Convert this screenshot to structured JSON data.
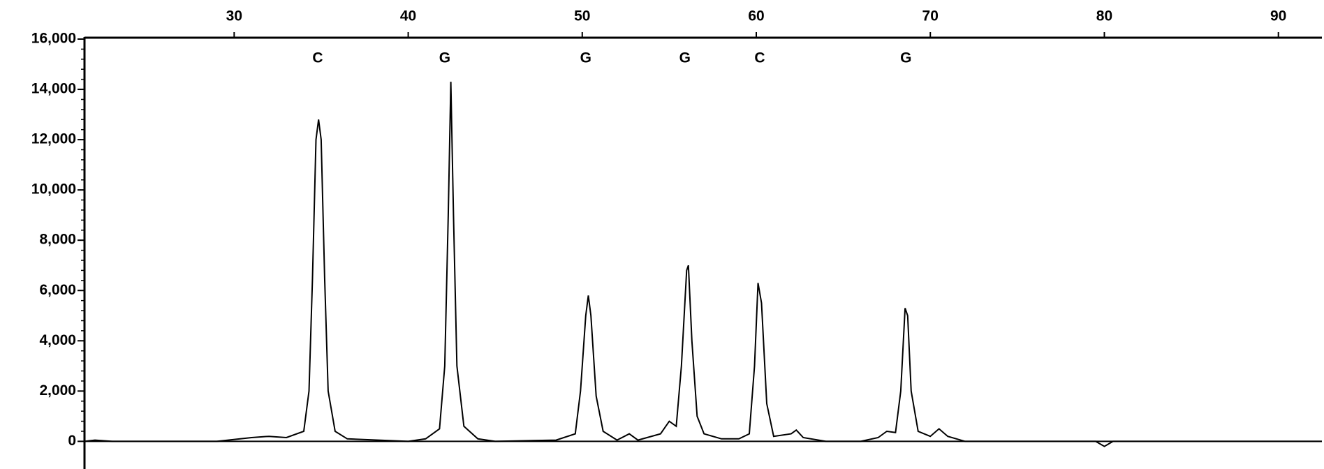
{
  "chart_data": {
    "type": "line",
    "xlim": [
      21.4,
      92.5
    ],
    "xticks": [
      30,
      40,
      50,
      60,
      70,
      80,
      90
    ],
    "ylim": [
      -1100,
      16000
    ],
    "yticks": [
      {
        "value": 0,
        "label": "0"
      },
      {
        "value": 2000,
        "label": "2,000"
      },
      {
        "value": 4000,
        "label": "4,000"
      },
      {
        "value": 6000,
        "label": "6,000"
      },
      {
        "value": 8000,
        "label": "8,000"
      },
      {
        "value": 10000,
        "label": "10,000"
      },
      {
        "value": 12000,
        "label": "12,000"
      },
      {
        "value": 14000,
        "label": "14,000"
      },
      {
        "value": 16000,
        "label": "16,000"
      }
    ],
    "base_calls": {
      "x": [
        34.8,
        42.1,
        50.2,
        55.9,
        60.2,
        68.6
      ],
      "labels": [
        "C",
        "G",
        "G",
        "G",
        "C",
        "G"
      ]
    },
    "series": [
      {
        "color": "#000000",
        "x": [
          21.4,
          22,
          23,
          29,
          31,
          32,
          33,
          34,
          34.3,
          34.5,
          34.7,
          34.85,
          35,
          35.2,
          35.4,
          35.8,
          36.5,
          40,
          41,
          41.8,
          42.1,
          42.3,
          42.45,
          42.6,
          42.8,
          43.2,
          44,
          45,
          48.5,
          49.6,
          49.9,
          50.2,
          50.35,
          50.5,
          50.8,
          51.2,
          52,
          52.7,
          53.2,
          54.5,
          55,
          55.4,
          55.7,
          56,
          56.1,
          56.3,
          56.6,
          57,
          58,
          59,
          59.6,
          59.9,
          60.1,
          60.3,
          60.6,
          61,
          62,
          62.3,
          62.7,
          64,
          66,
          67,
          67.5,
          68,
          68.3,
          68.55,
          68.7,
          68.9,
          69.3,
          70,
          70.5,
          71,
          72,
          79.5,
          80,
          80.5,
          92.5
        ],
        "values": [
          0,
          50,
          0,
          0,
          150,
          200,
          150,
          400,
          2000,
          6500,
          12000,
          12800,
          12000,
          6500,
          2000,
          400,
          100,
          0,
          100,
          500,
          3000,
          9000,
          14300,
          9000,
          3000,
          600,
          100,
          0,
          50,
          300,
          2000,
          5000,
          5800,
          5000,
          1800,
          400,
          50,
          300,
          50,
          300,
          800,
          600,
          3000,
          6800,
          7000,
          4000,
          1000,
          300,
          100,
          100,
          300,
          3000,
          6300,
          5500,
          1500,
          200,
          300,
          450,
          150,
          0,
          0,
          150,
          400,
          350,
          2000,
          5300,
          5000,
          2000,
          400,
          200,
          500,
          200,
          0,
          0,
          -200,
          0,
          0
        ]
      }
    ]
  }
}
